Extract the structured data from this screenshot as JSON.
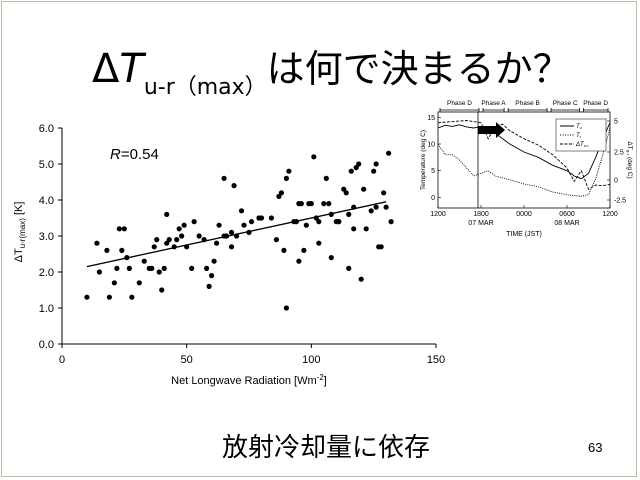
{
  "slide": {
    "title_delta": "Δ",
    "title_T": "T",
    "title_sub": "u-r（max）",
    "title_jp": "は何で決まるか？",
    "caption": "放射冷却量に依存",
    "page_number": "63"
  },
  "chart_data": [
    {
      "type": "scatter",
      "xlabel": "Net Longwave Radiation [Wm",
      "xlabel_sup": "-2",
      "xlabel_end": "]",
      "ylabel": "ΔT",
      "ylabel_sub": "u-r(max)",
      "ylabel_unit": " [K]",
      "annotation_R": "R",
      "annotation_value": "=0.54",
      "xlim": [
        0,
        150
      ],
      "ylim": [
        0,
        6
      ],
      "x_ticks": [
        "0",
        "50",
        "100",
        "150"
      ],
      "y_ticks": [
        "0.0",
        "1.0",
        "2.0",
        "3.0",
        "4.0",
        "5.0",
        "6.0"
      ],
      "x_tick_values": [
        0,
        50,
        100,
        150
      ],
      "y_tick_values": [
        0,
        1,
        2,
        3,
        4,
        5,
        6
      ],
      "trendline": [
        [
          10,
          2.15
        ],
        [
          130,
          3.95
        ]
      ],
      "points": [
        [
          10,
          1.3
        ],
        [
          14,
          2.8
        ],
        [
          15,
          2.0
        ],
        [
          18,
          2.6
        ],
        [
          19,
          1.3
        ],
        [
          21,
          1.7
        ],
        [
          22,
          2.1
        ],
        [
          23,
          3.2
        ],
        [
          24,
          2.6
        ],
        [
          25,
          3.2
        ],
        [
          26,
          2.4
        ],
        [
          27,
          2.1
        ],
        [
          28,
          1.3
        ],
        [
          31,
          1.7
        ],
        [
          33,
          2.3
        ],
        [
          35,
          2.1
        ],
        [
          36,
          2.1
        ],
        [
          37,
          2.7
        ],
        [
          38,
          2.9
        ],
        [
          39,
          2.0
        ],
        [
          40,
          1.5
        ],
        [
          41,
          2.1
        ],
        [
          42,
          2.8
        ],
        [
          42,
          3.6
        ],
        [
          43,
          2.9
        ],
        [
          45,
          2.7
        ],
        [
          46,
          2.9
        ],
        [
          47,
          3.2
        ],
        [
          48,
          3.0
        ],
        [
          49,
          3.3
        ],
        [
          50,
          2.7
        ],
        [
          52,
          2.1
        ],
        [
          53,
          3.4
        ],
        [
          55,
          3.0
        ],
        [
          57,
          2.9
        ],
        [
          58,
          2.1
        ],
        [
          59,
          1.6
        ],
        [
          60,
          1.9
        ],
        [
          61,
          2.3
        ],
        [
          62,
          2.8
        ],
        [
          63,
          3.3
        ],
        [
          65,
          3.0
        ],
        [
          65,
          4.6
        ],
        [
          66,
          3.0
        ],
        [
          68,
          2.7
        ],
        [
          68,
          3.1
        ],
        [
          69,
          4.4
        ],
        [
          70,
          3.0
        ],
        [
          72,
          3.7
        ],
        [
          73,
          3.3
        ],
        [
          75,
          3.1
        ],
        [
          76,
          3.4
        ],
        [
          79,
          3.5
        ],
        [
          80,
          3.5
        ],
        [
          84,
          3.5
        ],
        [
          86,
          2.9
        ],
        [
          87,
          4.1
        ],
        [
          88,
          4.2
        ],
        [
          89,
          2.6
        ],
        [
          90,
          4.6
        ],
        [
          90,
          1.0
        ],
        [
          91,
          4.8
        ],
        [
          93,
          3.4
        ],
        [
          94,
          3.4
        ],
        [
          95,
          2.3
        ],
        [
          95,
          3.9
        ],
        [
          96,
          3.9
        ],
        [
          97,
          2.6
        ],
        [
          98,
          3.3
        ],
        [
          99,
          3.9
        ],
        [
          100,
          3.9
        ],
        [
          101,
          5.2
        ],
        [
          102,
          3.5
        ],
        [
          103,
          3.4
        ],
        [
          103,
          2.8
        ],
        [
          105,
          3.9
        ],
        [
          106,
          4.6
        ],
        [
          107,
          3.9
        ],
        [
          108,
          3.6
        ],
        [
          108,
          2.4
        ],
        [
          110,
          3.4
        ],
        [
          111,
          3.4
        ],
        [
          111,
          3.4
        ],
        [
          113,
          4.3
        ],
        [
          114,
          4.2
        ],
        [
          115,
          3.6
        ],
        [
          115,
          2.1
        ],
        [
          116,
          4.8
        ],
        [
          117,
          3.8
        ],
        [
          117,
          3.2
        ],
        [
          118,
          4.9
        ],
        [
          119,
          5.0
        ],
        [
          120,
          1.8
        ],
        [
          121,
          4.3
        ],
        [
          122,
          3.2
        ],
        [
          124,
          3.7
        ],
        [
          125,
          4.8
        ],
        [
          126,
          5.0
        ],
        [
          126,
          3.8
        ],
        [
          127,
          2.7
        ],
        [
          128,
          2.7
        ],
        [
          129,
          4.2
        ],
        [
          130,
          3.8
        ],
        [
          131,
          5.3
        ],
        [
          132,
          3.4
        ]
      ]
    },
    {
      "type": "line",
      "xlabel": "TIME (JST)",
      "ylabel": "Temperature (deg C)",
      "ylabel2": "ΔT",
      "ylabel2_sub": "u-r",
      "ylabel2_unit": " (deg C)",
      "x_ticks": [
        "1200",
        "1800",
        "0000",
        "0600",
        "1200"
      ],
      "x_tick_values": [
        0,
        6,
        12,
        18,
        24
      ],
      "x_dates": [
        "07 MAR",
        "08 MAR"
      ],
      "y_ticks_left": [
        "0",
        "5",
        "10",
        "15"
      ],
      "y_tick_values_left": [
        0,
        5,
        10,
        15
      ],
      "y_ticks_right": [
        "-2.5",
        "0",
        "2.5",
        "5"
      ],
      "xlim": [
        0,
        24
      ],
      "ylim": [
        -2,
        16
      ],
      "phases": [
        "Phase D",
        "Phase A",
        "Phase B",
        "Phase C",
        "Phase D"
      ],
      "legend": [
        "T",
        "T",
        "ΔT"
      ],
      "legend_sub": [
        "u",
        "r",
        "u-r"
      ],
      "series": [
        {
          "name": "Tu",
          "style": "solid",
          "points": [
            [
              0,
              13
            ],
            [
              1,
              13.5
            ],
            [
              2,
              13.3
            ],
            [
              3,
              13.6
            ],
            [
              4,
              13.2
            ],
            [
              5,
              13
            ],
            [
              6,
              13.3
            ],
            [
              7,
              12.5
            ],
            [
              8,
              12
            ],
            [
              10,
              10
            ],
            [
              12,
              8.5
            ],
            [
              14,
              7.5
            ],
            [
              16,
              6
            ],
            [
              18,
              5
            ],
            [
              19,
              4
            ],
            [
              20,
              3.5
            ],
            [
              21,
              4.5
            ],
            [
              22,
              7.5
            ],
            [
              23,
              11
            ],
            [
              24,
              14
            ]
          ]
        },
        {
          "name": "Tr",
          "style": "dotted",
          "points": [
            [
              0,
              10
            ],
            [
              1,
              8
            ],
            [
              2,
              8
            ],
            [
              3,
              7
            ],
            [
              4,
              5.5
            ],
            [
              5,
              4
            ],
            [
              6,
              4.5
            ],
            [
              7,
              5
            ],
            [
              8,
              4
            ],
            [
              10,
              3.3
            ],
            [
              12,
              2.5
            ],
            [
              14,
              2
            ],
            [
              16,
              1
            ],
            [
              18,
              0.5
            ],
            [
              20,
              0.2
            ],
            [
              21,
              0.5
            ],
            [
              22,
              3.5
            ],
            [
              23,
              8
            ],
            [
              24,
              13
            ]
          ]
        },
        {
          "name": "dTur",
          "style": "dashed",
          "points": [
            [
              0,
              14
            ],
            [
              2,
              14.2
            ],
            [
              4,
              14.4
            ],
            [
              6,
              14
            ],
            [
              7,
              11
            ],
            [
              8,
              13.4
            ],
            [
              9,
              13.7
            ],
            [
              10,
              12.5
            ],
            [
              12,
              11
            ],
            [
              14,
              9.8
            ],
            [
              16,
              8
            ],
            [
              18,
              5.5
            ],
            [
              19,
              3
            ],
            [
              20,
              5
            ],
            [
              21,
              1.5
            ],
            [
              22,
              2.3
            ],
            [
              23,
              2.2
            ],
            [
              24,
              2.4
            ]
          ]
        }
      ]
    }
  ]
}
